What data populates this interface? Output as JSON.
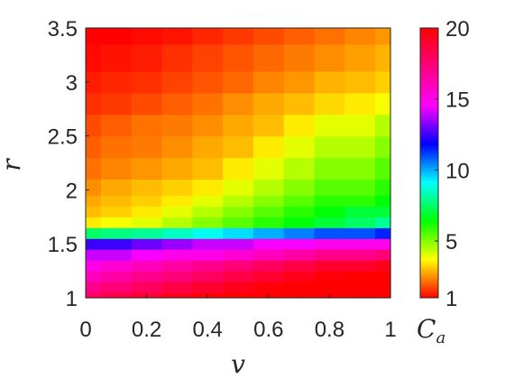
{
  "chart_data": {
    "type": "heatmap",
    "title": "",
    "xlabel": "v",
    "ylabel": "r",
    "xlim": [
      0,
      1
    ],
    "ylim": [
      1,
      3.5
    ],
    "xticks": [
      "0",
      "0.2",
      "0.4",
      "0.6",
      "0.8",
      "1"
    ],
    "yticks": [
      "1",
      "1.5",
      "2",
      "2.5",
      "3",
      "3.5"
    ],
    "colorbar": {
      "label_main": "C",
      "label_sub": "a",
      "range": [
        1,
        20
      ],
      "ticks": [
        "1",
        "5",
        "10",
        "15",
        "20"
      ],
      "colormap": [
        "#ff0000",
        "#ffff00",
        "#00ff00",
        "#00ffff",
        "#0000ff",
        "#ff00ff",
        "#ff0080",
        "#ff0000"
      ]
    },
    "grid": false,
    "v_samples": [
      0,
      0.1,
      0.2,
      0.3,
      0.4,
      0.5,
      0.6,
      0.7,
      0.8,
      0.9,
      1.0
    ],
    "r_samples": [
      1.0,
      1.1,
      1.2,
      1.3,
      1.4,
      1.5,
      1.6,
      1.7,
      1.8,
      1.9,
      2.0,
      2.2,
      2.4,
      2.6,
      2.8,
      3.0,
      3.2,
      3.5
    ],
    "values": [
      [
        18,
        18.5,
        19,
        19.5,
        19.8,
        20,
        20,
        20,
        20,
        20,
        20
      ],
      [
        17,
        17.5,
        18,
        18.5,
        19,
        19.5,
        19.8,
        20,
        20,
        20,
        20
      ],
      [
        16,
        16.5,
        17,
        17.5,
        18,
        18.5,
        19,
        19.5,
        19.8,
        20,
        20
      ],
      [
        15,
        15.5,
        16,
        16.5,
        17,
        17.5,
        18,
        18.5,
        19,
        19,
        19.5
      ],
      [
        14,
        14,
        14.5,
        15,
        15,
        15.5,
        16,
        16.5,
        17,
        17,
        17.5
      ],
      [
        12.5,
        12.5,
        13,
        13.5,
        14,
        14,
        14.5,
        14.5,
        15,
        15,
        15
      ],
      [
        7.5,
        7.8,
        8,
        8.5,
        9,
        9.5,
        10,
        10.5,
        11,
        11,
        11.5
      ],
      [
        3.5,
        3.8,
        4,
        4.5,
        5,
        5.5,
        6,
        6.5,
        7,
        7.5,
        8
      ],
      [
        3,
        3.2,
        3.5,
        4,
        4.5,
        5,
        5.5,
        6,
        6.5,
        7,
        7
      ],
      [
        2.8,
        3,
        3.2,
        3.5,
        4,
        4.5,
        5,
        5.5,
        6,
        6,
        6.5
      ],
      [
        2.5,
        2.8,
        3,
        3.2,
        3.5,
        4,
        4.5,
        5,
        5.5,
        5.5,
        6
      ],
      [
        2.2,
        2.4,
        2.6,
        2.8,
        3,
        3.5,
        4,
        4.5,
        5,
        5,
        5.5
      ],
      [
        2,
        2.2,
        2.3,
        2.5,
        2.8,
        3,
        3.5,
        4,
        4.5,
        4.5,
        5
      ],
      [
        1.8,
        2,
        2.2,
        2.3,
        2.5,
        2.8,
        3,
        3.5,
        4,
        4,
        4.5
      ],
      [
        1.5,
        1.6,
        1.8,
        2,
        2.2,
        2.5,
        2.8,
        3,
        3.3,
        3.5,
        3.8
      ],
      [
        1.3,
        1.4,
        1.5,
        1.7,
        1.9,
        2.1,
        2.4,
        2.6,
        2.9,
        3,
        3.2
      ],
      [
        1.1,
        1.2,
        1.3,
        1.5,
        1.7,
        1.9,
        2.1,
        2.3,
        2.5,
        2.7,
        2.9
      ],
      [
        1,
        1,
        1.1,
        1.2,
        1.4,
        1.6,
        1.8,
        2,
        2.2,
        2.4,
        2.6
      ]
    ]
  }
}
